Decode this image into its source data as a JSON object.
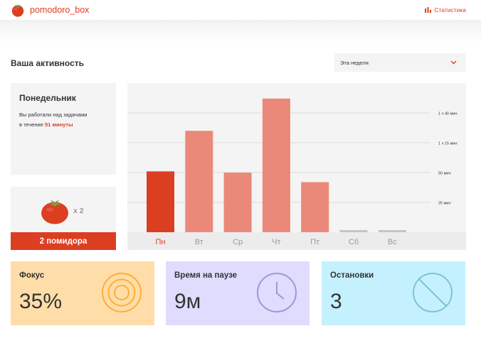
{
  "header": {
    "logo_text": "pomodoro_box",
    "stats_link": "Статистика"
  },
  "page": {
    "title": "Ваша активность"
  },
  "period_select": {
    "value": "Эта неделя"
  },
  "day_summary": {
    "title": "Понедельник",
    "text_line1": "Вы работали над задачами",
    "text_line2_prefix": "в течение ",
    "text_duration": "51 минуты"
  },
  "tomatoes": {
    "count_label": "x 2",
    "footer_label": "2 помидора"
  },
  "metrics": {
    "focus": {
      "title": "Фокус",
      "value": "35%"
    },
    "pause": {
      "title": "Время на паузе",
      "value": "9м"
    },
    "stops": {
      "title": "Остановки",
      "value": "3"
    }
  },
  "colors": {
    "accent": "#dc3e22",
    "bar": "#ea8979",
    "bar_selected": "#dc3e22",
    "bar_empty": "#c4c4c4",
    "focus_bg": "#ffdda9",
    "focus_icon": "#ffae35",
    "pause_bg": "#dfdcfe",
    "pause_icon": "#9c97d7",
    "stops_bg": "#c5f1ff",
    "stops_icon": "#7fc2d7"
  },
  "icons": {
    "logo": "tomato-icon",
    "stats": "bar-chart-icon",
    "select": "chevron-down-icon",
    "focus": "target-icon",
    "pause": "clock-icon",
    "stops": "stop-icon"
  },
  "chart_data": {
    "type": "bar",
    "title": "",
    "categories": [
      "Пн",
      "Вт",
      "Ср",
      "Чт",
      "Пт",
      "Сб",
      "Вс"
    ],
    "values": [
      51,
      85,
      50,
      112,
      42,
      0,
      0
    ],
    "selected_index": 0,
    "ylabel": "",
    "xlabel": "",
    "ylim": [
      0,
      125
    ],
    "yticks": [
      25,
      50,
      75,
      100
    ],
    "ytick_labels": [
      "25 мин",
      "50 мин",
      "1 ч 15 мин",
      "1 ч 40 мин"
    ],
    "grid": true
  }
}
